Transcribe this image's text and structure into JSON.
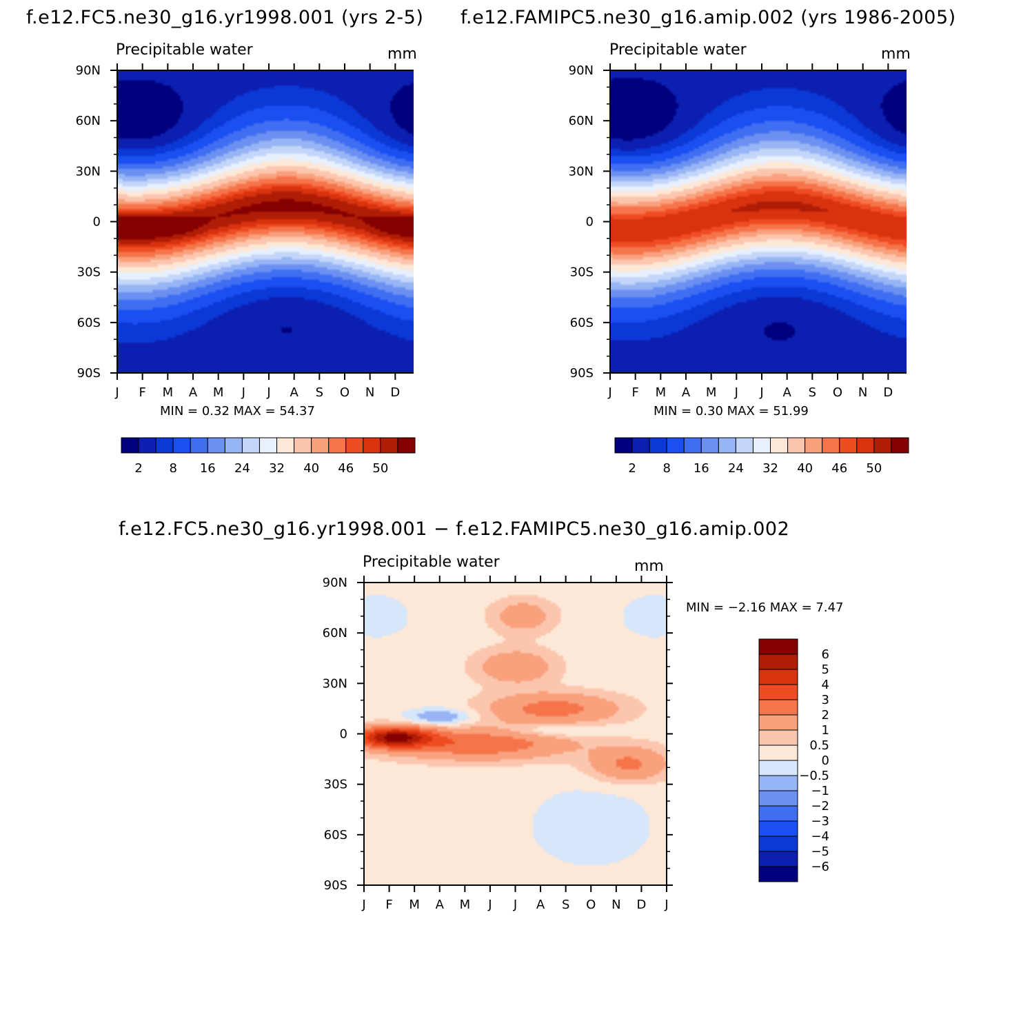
{
  "panels": [
    {
      "id": "a",
      "title": "f.e12.FC5.ne30_g16.yr1998.001 (yrs 2-5)",
      "variable": "Precipitable water",
      "units": "mm",
      "min_max": "MIN =    0.32  MAX =    54.37"
    },
    {
      "id": "b",
      "title": "f.e12.FAMIPC5.ne30_g16.amip.002 (yrs 1986-2005)",
      "variable": "Precipitable water",
      "units": "mm",
      "min_max": "MIN =    0.30  MAX =    51.99"
    },
    {
      "id": "c",
      "title": "f.e12.FC5.ne30_g16.yr1998.001 − f.e12.FAMIPC5.ne30_g16.amip.002",
      "variable": "Precipitable water",
      "units": "mm",
      "min_max": "MIN =   −2.16  MAX =    7.47"
    }
  ],
  "colors": {
    "abs_scale": [
      "#00007f",
      "#0c1fb0",
      "#0b38d6",
      "#1a4ff2",
      "#3f6ef2",
      "#6b90f2",
      "#97b4f5",
      "#c3d6fa",
      "#e8f0fd",
      "#fde8d8",
      "#fcc6ae",
      "#f9a07c",
      "#f6744a",
      "#f04c23",
      "#d8320e",
      "#b01d06",
      "#850000"
    ],
    "diff_scale": [
      "#00007f",
      "#0c1fb0",
      "#0b38d6",
      "#1a4ff2",
      "#3f6ef2",
      "#6b90f2",
      "#97b4f5",
      "#d6e6fb",
      "#fde8d8",
      "#fcc6ae",
      "#f9a07c",
      "#f6744a",
      "#f04c23",
      "#d8320e",
      "#b01d06",
      "#850000"
    ]
  },
  "chart_data": [
    {
      "type": "heatmap",
      "title": "Precipitable water",
      "units": "mm",
      "x_ticks": [
        "J",
        "F",
        "M",
        "A",
        "M",
        "J",
        "J",
        "A",
        "S",
        "O",
        "N",
        "D",
        "J"
      ],
      "y_ticks": [
        "90N",
        "60N",
        "30N",
        "0",
        "30S",
        "60S",
        "90S"
      ],
      "ylim": [
        -90,
        90
      ],
      "colorbar_labels": [
        "2",
        "8",
        "16",
        "24",
        "32",
        "40",
        "46",
        "50"
      ],
      "min": 0.32,
      "max": 54.37
    },
    {
      "type": "heatmap",
      "title": "Precipitable water",
      "units": "mm",
      "x_ticks": [
        "J",
        "F",
        "M",
        "A",
        "M",
        "J",
        "J",
        "A",
        "S",
        "O",
        "N",
        "D",
        "J"
      ],
      "y_ticks": [
        "90N",
        "60N",
        "30N",
        "0",
        "30S",
        "60S",
        "90S"
      ],
      "ylim": [
        -90,
        90
      ],
      "colorbar_labels": [
        "2",
        "8",
        "16",
        "24",
        "32",
        "40",
        "46",
        "50"
      ],
      "min": 0.3,
      "max": 51.99
    },
    {
      "type": "heatmap",
      "title": "Precipitable water",
      "units": "mm",
      "x_ticks": [
        "J",
        "F",
        "M",
        "A",
        "M",
        "J",
        "J",
        "A",
        "S",
        "O",
        "N",
        "D",
        "J"
      ],
      "y_ticks": [
        "90N",
        "60N",
        "30N",
        "0",
        "30S",
        "60S",
        "90S"
      ],
      "ylim": [
        -90,
        90
      ],
      "colorbar_labels": [
        "6",
        "5",
        "4",
        "3",
        "2",
        "1",
        "0.5",
        "0",
        "−0.5",
        "−1",
        "−2",
        "−3",
        "−4",
        "−5",
        "−6"
      ],
      "min": -2.16,
      "max": 7.47
    }
  ]
}
